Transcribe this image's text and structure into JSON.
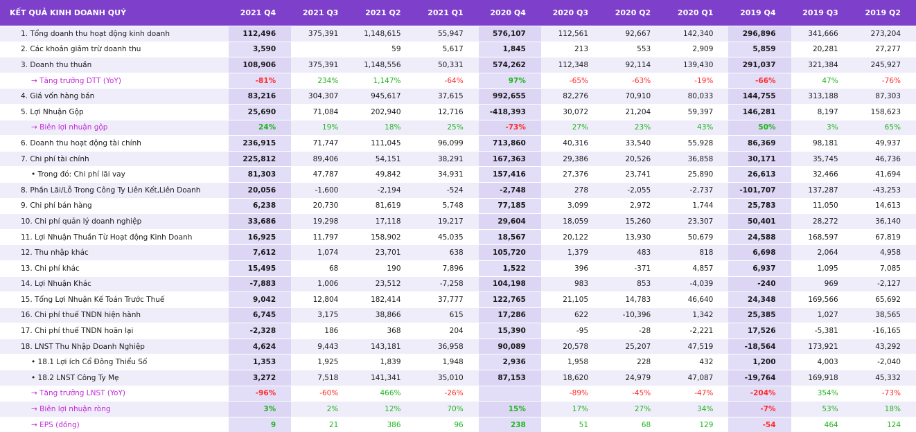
{
  "header": {
    "title": "KẾT QUẢ KINH DOANH QUÝ",
    "quarters": [
      "2021 Q4",
      "2021 Q3",
      "2021 Q2",
      "2021 Q1",
      "2020 Q4",
      "2020 Q3",
      "2020 Q2",
      "2020 Q1",
      "2019 Q4",
      "2019 Q3",
      "2019 Q2"
    ]
  },
  "rows": [
    {
      "label": "1. Tổng doanh thu hoạt động kinh doanh",
      "type": "normal",
      "values": [
        "112,496",
        "375,391",
        "1,148,615",
        "55,947",
        "576,107",
        "112,561",
        "92,667",
        "142,340",
        "296,896",
        "341,666",
        "273,204"
      ]
    },
    {
      "label": "2. Các khoản giảm trừ doanh thu",
      "type": "normal",
      "values": [
        "3,590",
        "",
        "59",
        "5,617",
        "1,845",
        "213",
        "553",
        "2,909",
        "5,859",
        "20,281",
        "27,277"
      ]
    },
    {
      "label": "3. Doanh thu thuần",
      "type": "normal",
      "values": [
        "108,906",
        "375,391",
        "1,148,556",
        "50,331",
        "574,262",
        "112,348",
        "92,114",
        "139,430",
        "291,037",
        "321,384",
        "245,927"
      ]
    },
    {
      "label": "→ Tăng trưởng DTT (YoY)",
      "type": "pct",
      "values": [
        "-81%",
        "234%",
        "1,147%",
        "-64%",
        "97%",
        "-65%",
        "-63%",
        "-19%",
        "-66%",
        "47%",
        "-76%"
      ]
    },
    {
      "label": "4. Giá vốn hàng bán",
      "type": "normal",
      "values": [
        "83,216",
        "304,307",
        "945,617",
        "37,615",
        "992,655",
        "82,276",
        "70,910",
        "80,033",
        "144,755",
        "313,188",
        "87,303"
      ]
    },
    {
      "label": "5. Lợi Nhuận Gộp",
      "type": "normal",
      "values": [
        "25,690",
        "71,084",
        "202,940",
        "12,716",
        "-418,393",
        "30,072",
        "21,204",
        "59,397",
        "146,281",
        "8,197",
        "158,623"
      ]
    },
    {
      "label": "→ Biên lợi nhuận gộp",
      "type": "pct",
      "values": [
        "24%",
        "19%",
        "18%",
        "25%",
        "-73%",
        "27%",
        "23%",
        "43%",
        "50%",
        "3%",
        "65%"
      ]
    },
    {
      "label": "6. Doanh thu hoạt động tài chính",
      "type": "normal",
      "values": [
        "236,915",
        "71,747",
        "111,045",
        "96,099",
        "713,860",
        "40,316",
        "33,540",
        "55,928",
        "86,369",
        "98,181",
        "49,937"
      ]
    },
    {
      "label": "7. Chi phí tài chính",
      "type": "normal",
      "values": [
        "225,812",
        "89,406",
        "54,151",
        "38,291",
        "167,363",
        "29,386",
        "20,526",
        "36,858",
        "30,171",
        "35,745",
        "46,736"
      ]
    },
    {
      "label": "• Trong đó: Chi phí lãi vay",
      "type": "sub",
      "values": [
        "81,303",
        "47,787",
        "49,842",
        "34,931",
        "157,416",
        "27,376",
        "23,741",
        "25,890",
        "26,613",
        "32,466",
        "41,694"
      ]
    },
    {
      "label": "8. Phần Lãi/Lỗ Trong Công Ty Liên Kết,Liên Doanh",
      "type": "normal",
      "values": [
        "20,056",
        "-1,600",
        "-2,194",
        "-524",
        "-2,748",
        "278",
        "-2,055",
        "-2,737",
        "-101,707",
        "137,287",
        "-43,253"
      ]
    },
    {
      "label": "9. Chi phí bán hàng",
      "type": "normal",
      "values": [
        "6,238",
        "20,730",
        "81,619",
        "5,748",
        "77,185",
        "3,099",
        "2,972",
        "1,744",
        "25,783",
        "11,050",
        "14,613"
      ]
    },
    {
      "label": "10. Chi phí quản lý doanh nghiệp",
      "type": "normal",
      "values": [
        "33,686",
        "19,298",
        "17,118",
        "19,217",
        "29,604",
        "18,059",
        "15,260",
        "23,307",
        "50,401",
        "28,272",
        "36,140"
      ]
    },
    {
      "label": "11. Lợi Nhuận Thuần Từ Hoạt động Kinh Doanh",
      "type": "normal",
      "values": [
        "16,925",
        "11,797",
        "158,902",
        "45,035",
        "18,567",
        "20,122",
        "13,930",
        "50,679",
        "24,588",
        "168,597",
        "67,819"
      ]
    },
    {
      "label": "12. Thu nhập khác",
      "type": "normal",
      "values": [
        "7,612",
        "1,074",
        "23,701",
        "638",
        "105,720",
        "1,379",
        "483",
        "818",
        "6,698",
        "2,064",
        "4,958"
      ]
    },
    {
      "label": "13. Chi phí khác",
      "type": "normal",
      "values": [
        "15,495",
        "68",
        "190",
        "7,896",
        "1,522",
        "396",
        "-371",
        "4,857",
        "6,937",
        "1,095",
        "7,085"
      ]
    },
    {
      "label": "14. Lợi Nhuận Khác",
      "type": "normal",
      "values": [
        "-7,883",
        "1,006",
        "23,512",
        "-7,258",
        "104,198",
        "983",
        "853",
        "-4,039",
        "-240",
        "969",
        "-2,127"
      ]
    },
    {
      "label": "15. Tổng Lợi Nhuận Kế Toán Trước Thuế",
      "type": "normal",
      "values": [
        "9,042",
        "12,804",
        "182,414",
        "37,777",
        "122,765",
        "21,105",
        "14,783",
        "46,640",
        "24,348",
        "169,566",
        "65,692"
      ]
    },
    {
      "label": "16. Chi phí thuế TNDN hiện hành",
      "type": "normal",
      "values": [
        "6,745",
        "3,175",
        "38,866",
        "615",
        "17,286",
        "622",
        "-10,396",
        "1,342",
        "25,385",
        "1,027",
        "38,565"
      ]
    },
    {
      "label": "17. Chi phí thuế TNDN hoãn lại",
      "type": "normal",
      "values": [
        "-2,328",
        "186",
        "368",
        "204",
        "15,390",
        "-95",
        "-28",
        "-2,221",
        "17,526",
        "-5,381",
        "-16,165"
      ]
    },
    {
      "label": "18. LNST Thu Nhập Doanh Nghiệp",
      "type": "normal",
      "values": [
        "4,624",
        "9,443",
        "143,181",
        "36,958",
        "90,089",
        "20,578",
        "25,207",
        "47,519",
        "-18,564",
        "173,921",
        "43,292"
      ]
    },
    {
      "label": "• 18.1 Lợi ích Cổ Đông Thiểu Số",
      "type": "sub",
      "values": [
        "1,353",
        "1,925",
        "1,839",
        "1,948",
        "2,936",
        "1,958",
        "228",
        "432",
        "1,200",
        "4,003",
        "-2,040"
      ]
    },
    {
      "label": "• 18.2 LNST Công Ty Mẹ",
      "type": "sub",
      "values": [
        "3,272",
        "7,518",
        "141,341",
        "35,010",
        "87,153",
        "18,620",
        "24,979",
        "47,087",
        "-19,764",
        "169,918",
        "45,332"
      ]
    },
    {
      "label": "→ Tăng trưởng LNST (YoY)",
      "type": "pct",
      "values": [
        "-96%",
        "-60%",
        "466%",
        "-26%",
        "",
        "-89%",
        "-45%",
        "-47%",
        "-204%",
        "354%",
        "-73%"
      ]
    },
    {
      "label": "→ Biên lợi nhuận ròng",
      "type": "pct",
      "values": [
        "3%",
        "2%",
        "12%",
        "70%",
        "15%",
        "17%",
        "27%",
        "34%",
        "-7%",
        "53%",
        "18%"
      ]
    },
    {
      "label": "→ EPS (đồng)",
      "type": "pct",
      "values": [
        "9",
        "21",
        "386",
        "96",
        "238",
        "51",
        "68",
        "129",
        "-54",
        "464",
        "124"
      ]
    }
  ],
  "colors": {
    "header_bg": "#7e3fcb",
    "positive": "#1fb51f",
    "negative": "#ff2b2b",
    "growth_label": "#c22ad6"
  }
}
